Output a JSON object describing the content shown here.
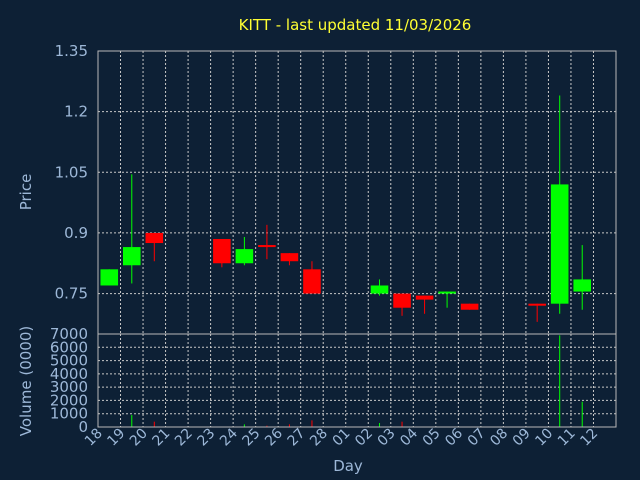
{
  "chart_data": {
    "type": "candlestick",
    "title": "KITT - last updated 11/03/2026",
    "xlabel": "Day",
    "ylabel_price": "Price",
    "ylabel_volume": "Volume (0000)",
    "price_ylim": [
      0.65,
      1.35
    ],
    "price_ticks": [
      "1.35",
      "1.2",
      "1.05",
      "0.9",
      "0.75"
    ],
    "price_tick_values": [
      1.35,
      1.2,
      1.05,
      0.9,
      0.75
    ],
    "volume_ylim": [
      0,
      7000
    ],
    "volume_ticks": [
      "7000",
      "6000",
      "5000",
      "4000",
      "3000",
      "2000",
      "1000",
      "0"
    ],
    "volume_tick_values": [
      7000,
      6000,
      5000,
      4000,
      3000,
      2000,
      1000,
      0
    ],
    "x_labels": [
      "18",
      "19",
      "20",
      "21",
      "22",
      "23",
      "24",
      "25",
      "26",
      "27",
      "28",
      "01",
      "02",
      "03",
      "04",
      "05",
      "06",
      "07",
      "08",
      "09",
      "10",
      "11",
      "12"
    ],
    "up_color": "#00ff00",
    "down_color": "#ff0000",
    "candles": [
      {
        "day": "18",
        "open": 0.77,
        "close": 0.81,
        "high": 0.81,
        "low": 0.77,
        "volume": 0
      },
      {
        "day": "19",
        "open": 0.82,
        "close": 0.865,
        "high": 1.045,
        "low": 0.775,
        "volume": 900
      },
      {
        "day": "20",
        "open": 0.9,
        "close": 0.875,
        "high": 0.9,
        "low": 0.83,
        "volume": 400
      },
      {
        "day": "23",
        "open": 0.885,
        "close": 0.825,
        "high": 0.885,
        "low": 0.815,
        "volume": 0
      },
      {
        "day": "24",
        "open": 0.825,
        "close": 0.86,
        "high": 0.89,
        "low": 0.82,
        "volume": 200
      },
      {
        "day": "25",
        "open": 0.87,
        "close": 0.865,
        "high": 0.92,
        "low": 0.835,
        "volume": 100
      },
      {
        "day": "26",
        "open": 0.85,
        "close": 0.83,
        "high": 0.85,
        "low": 0.82,
        "volume": 200
      },
      {
        "day": "27",
        "open": 0.81,
        "close": 0.75,
        "high": 0.83,
        "low": 0.75,
        "volume": 500
      },
      {
        "day": "02",
        "open": 0.75,
        "close": 0.77,
        "high": 0.785,
        "low": 0.745,
        "volume": 300
      },
      {
        "day": "03",
        "open": 0.75,
        "close": 0.715,
        "high": 0.75,
        "low": 0.695,
        "volume": 400
      },
      {
        "day": "04",
        "open": 0.745,
        "close": 0.735,
        "high": 0.745,
        "low": 0.7,
        "volume": 0
      },
      {
        "day": "05",
        "open": 0.75,
        "close": 0.755,
        "high": 0.755,
        "low": 0.715,
        "volume": 0
      },
      {
        "day": "06",
        "open": 0.725,
        "close": 0.71,
        "high": 0.725,
        "low": 0.71,
        "volume": 0
      },
      {
        "day": "09",
        "open": 0.725,
        "close": 0.72,
        "high": 0.725,
        "low": 0.68,
        "volume": 0
      },
      {
        "day": "10",
        "open": 0.725,
        "close": 1.02,
        "high": 1.24,
        "low": 0.7,
        "volume": 6900
      },
      {
        "day": "11",
        "open": 0.755,
        "close": 0.785,
        "high": 0.87,
        "low": 0.71,
        "volume": 1900
      }
    ]
  }
}
